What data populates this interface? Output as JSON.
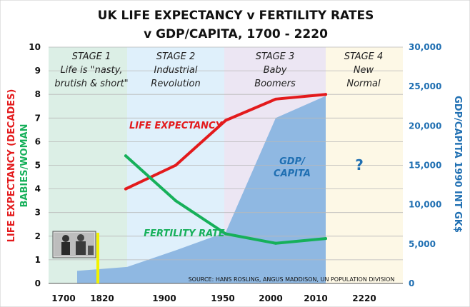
{
  "chart_data": {
    "type": "line",
    "title_line1": "UK LIFE EXPECTANCY v FERTILITY RATES",
    "title_line2": "v GDP/CAPITA, 1700 - 2220",
    "x_tick_labels": [
      "1700",
      "1820",
      "1900",
      "1950",
      "2000",
      "2010",
      "2220"
    ],
    "left_ylim": [
      0,
      10
    ],
    "left_ticks": [
      "0",
      "1",
      "2",
      "3",
      "4",
      "5",
      "6",
      "7",
      "8",
      "9",
      "10"
    ],
    "right_ylim": [
      0,
      30000
    ],
    "right_ticks": [
      "0",
      "5,000",
      "10,000",
      "15,000",
      "20,000",
      "25,000",
      "30,000"
    ],
    "ylabel_left_1": "LIFE EXPECTANCY (DECADES)",
    "ylabel_left_2": "BABIES/WOMAN",
    "ylabel_right": "GDP/CAPITA 1990 INT GK$",
    "stages": [
      {
        "line1": "STAGE 1",
        "line2": "Life is \"nasty,",
        "line3": "brutish & short\"",
        "color": "#dcefe6"
      },
      {
        "line1": "STAGE 2",
        "line2": "Industrial",
        "line3": "Revolution",
        "color": "#dff0fb"
      },
      {
        "line1": "STAGE 3",
        "line2": "Baby",
        "line3": "Boomers",
        "color": "#ece6f3"
      },
      {
        "line1": "STAGE 4",
        "line2": "New",
        "line3": "Normal",
        "color": "#fdf8e6"
      }
    ],
    "series": [
      {
        "name": "LIFE EXPECTANCY",
        "color": "#e31a1c",
        "x_tick_index": [
          1,
          2,
          3,
          4,
          5
        ],
        "values": [
          4.0,
          5.0,
          6.9,
          7.8,
          8.0
        ]
      },
      {
        "name": "FERTILITY RATE",
        "color": "#16b05a",
        "x_tick_index": [
          1,
          2,
          3,
          4,
          5
        ],
        "values": [
          5.4,
          3.5,
          2.1,
          1.7,
          1.9
        ]
      },
      {
        "name": "GDP/ CAPITA",
        "color": "#8fb8e2",
        "x_tick_index": [
          0.2,
          1,
          2,
          3,
          4,
          5
        ],
        "values": [
          1600,
          2100,
          4200,
          6500,
          21000,
          23800
        ]
      }
    ],
    "annotations": {
      "life": "LIFE EXPECTANCY",
      "fertility": "FERTILITY RATE",
      "gdp_1": "GDP/",
      "gdp_2": "CAPITA",
      "question": "?",
      "source": "SOURCE:  HANS ROSLING, ANGUS MADDISON, UN POPULATION DIVISION"
    },
    "colors": {
      "life": "#e31a1c",
      "fertility": "#16b05a",
      "gdp_area": "#8fb8e2",
      "gdp_text": "#1f6fb2",
      "question": "#1f6fb2",
      "marker": "#f2f200"
    }
  }
}
